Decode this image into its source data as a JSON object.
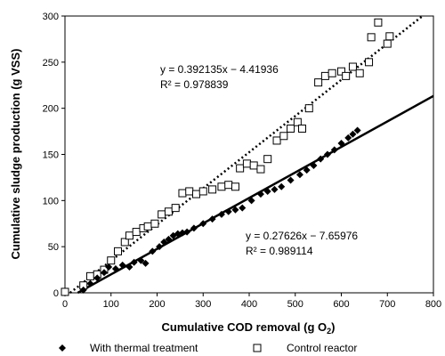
{
  "chart_data": {
    "type": "scatter",
    "xlabel": "Cumulative COD removal (g O",
    "xlabel_sub": "2",
    "xlabel_close": ")",
    "ylabel": "Cumulative sludge production (g VSS)",
    "xlim": [
      0,
      800
    ],
    "ylim": [
      0,
      300
    ],
    "x_ticks": [
      0,
      100,
      200,
      300,
      400,
      500,
      600,
      700,
      800
    ],
    "y_ticks": [
      0,
      50,
      100,
      150,
      200,
      250,
      300
    ],
    "grid": false,
    "legend_position": "bottom",
    "series": [
      {
        "name": "With thermal treatment",
        "marker": "filled-diamond",
        "color": "#000000",
        "points": [
          [
            40,
            3
          ],
          [
            55,
            10
          ],
          [
            70,
            16
          ],
          [
            85,
            22
          ],
          [
            95,
            28
          ],
          [
            110,
            26
          ],
          [
            125,
            30
          ],
          [
            140,
            28
          ],
          [
            150,
            33
          ],
          [
            165,
            35
          ],
          [
            175,
            32
          ],
          [
            190,
            45
          ],
          [
            205,
            50
          ],
          [
            215,
            55
          ],
          [
            225,
            58
          ],
          [
            235,
            62
          ],
          [
            245,
            64
          ],
          [
            255,
            65
          ],
          [
            265,
            66
          ],
          [
            280,
            70
          ],
          [
            300,
            75
          ],
          [
            320,
            80
          ],
          [
            340,
            85
          ],
          [
            355,
            88
          ],
          [
            370,
            90
          ],
          [
            385,
            92
          ],
          [
            405,
            100
          ],
          [
            425,
            107
          ],
          [
            440,
            110
          ],
          [
            455,
            112
          ],
          [
            470,
            115
          ],
          [
            490,
            122
          ],
          [
            510,
            128
          ],
          [
            525,
            133
          ],
          [
            540,
            138
          ],
          [
            555,
            145
          ],
          [
            570,
            150
          ],
          [
            585,
            155
          ],
          [
            600,
            162
          ],
          [
            615,
            168
          ],
          [
            625,
            172
          ],
          [
            635,
            176
          ]
        ]
      },
      {
        "name": "Control reactor",
        "marker": "open-square",
        "color": "#000000",
        "points": [
          [
            0,
            1
          ],
          [
            40,
            8
          ],
          [
            55,
            18
          ],
          [
            70,
            20
          ],
          [
            85,
            25
          ],
          [
            100,
            35
          ],
          [
            115,
            45
          ],
          [
            130,
            55
          ],
          [
            140,
            62
          ],
          [
            155,
            66
          ],
          [
            170,
            70
          ],
          [
            180,
            72
          ],
          [
            195,
            75
          ],
          [
            210,
            85
          ],
          [
            225,
            88
          ],
          [
            240,
            92
          ],
          [
            255,
            108
          ],
          [
            270,
            110
          ],
          [
            285,
            107
          ],
          [
            300,
            110
          ],
          [
            320,
            112
          ],
          [
            340,
            115
          ],
          [
            355,
            117
          ],
          [
            370,
            115
          ],
          [
            380,
            135
          ],
          [
            395,
            140
          ],
          [
            410,
            138
          ],
          [
            425,
            134
          ],
          [
            440,
            145
          ],
          [
            460,
            165
          ],
          [
            475,
            170
          ],
          [
            490,
            178
          ],
          [
            505,
            185
          ],
          [
            515,
            178
          ],
          [
            530,
            200
          ],
          [
            550,
            228
          ],
          [
            565,
            235
          ],
          [
            580,
            238
          ],
          [
            600,
            240
          ],
          [
            610,
            235
          ],
          [
            625,
            245
          ],
          [
            640,
            238
          ],
          [
            660,
            250
          ],
          [
            665,
            277
          ],
          [
            680,
            293
          ],
          [
            700,
            270
          ],
          [
            705,
            278
          ]
        ]
      }
    ],
    "trendlines": [
      {
        "series": "With thermal treatment",
        "style": "solid",
        "slope": 0.27626,
        "intercept": -7.65976,
        "x_range": [
          27.7,
          800
        ],
        "equation": "y = 0.27626x − 7.65976",
        "r2": "R² = 0.989114"
      },
      {
        "series": "Control reactor",
        "style": "dotted",
        "slope": 0.392135,
        "intercept": -4.41936,
        "x_range": [
          11.3,
          776.3
        ],
        "equation": "y = 0.392135x − 4.41936",
        "r2": "R² = 0.978839"
      }
    ]
  }
}
